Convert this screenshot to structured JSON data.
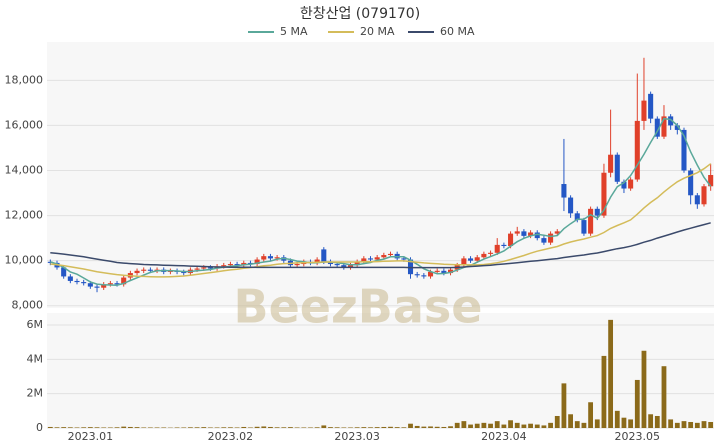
{
  "chart_data": [
    {
      "type": "candlestick",
      "title": "한창산업 (079170)",
      "watermark": "BeezBase",
      "up_color": "#e0402a",
      "down_color": "#2457c5",
      "grid": true,
      "ylim": [
        7900,
        19700
      ],
      "yticks": [
        {
          "value": 8000,
          "label": "8,000"
        },
        {
          "value": 10000,
          "label": "10,000"
        },
        {
          "value": 12000,
          "label": "12,000"
        },
        {
          "value": 14000,
          "label": "14,000"
        },
        {
          "value": 16000,
          "label": "16,000"
        },
        {
          "value": 18000,
          "label": "18,000"
        }
      ],
      "open": [
        9950,
        9900,
        9700,
        9300,
        9100,
        9050,
        9000,
        8850,
        8800,
        8950,
        9000,
        8950,
        9250,
        9450,
        9550,
        9600,
        9550,
        9600,
        9500,
        9550,
        9500,
        9450,
        9600,
        9650,
        9700,
        9650,
        9750,
        9800,
        9850,
        9800,
        9900,
        9850,
        10050,
        10200,
        10100,
        10150,
        10000,
        9800,
        9850,
        9950,
        9900,
        10500,
        9950,
        9850,
        9800,
        9700,
        9800,
        9950,
        10100,
        10050,
        10150,
        10250,
        10300,
        10100,
        10050,
        9400,
        9350,
        9300,
        9500,
        9550,
        9450,
        9600,
        9800,
        10100,
        10000,
        10150,
        10300,
        10350,
        10700,
        10650,
        11200,
        11300,
        11100,
        11250,
        11000,
        10800,
        11200,
        13400,
        12800,
        12100,
        11800,
        11200,
        12300,
        12000,
        13900,
        14700,
        13500,
        13200,
        13600,
        16200,
        17400,
        16300,
        15500,
        16400,
        16000,
        15800,
        14000,
        12900,
        12500,
        13300
      ],
      "high": [
        10050,
        10000,
        9800,
        9400,
        9200,
        9150,
        9100,
        8950,
        9050,
        9100,
        9100,
        9350,
        9550,
        9650,
        9700,
        9700,
        9700,
        9700,
        9650,
        9650,
        9600,
        9700,
        9750,
        9800,
        9800,
        9850,
        9900,
        9950,
        9950,
        10000,
        10000,
        10150,
        10300,
        10300,
        10250,
        10250,
        10100,
        9950,
        10050,
        10050,
        10150,
        10600,
        10050,
        9950,
        9900,
        9900,
        10050,
        10200,
        10200,
        10250,
        10350,
        10400,
        10400,
        10200,
        10150,
        9500,
        9450,
        9600,
        9650,
        9650,
        9700,
        9900,
        10200,
        10200,
        10250,
        10400,
        10450,
        11000,
        10800,
        11300,
        11500,
        11400,
        11350,
        11350,
        11100,
        11300,
        11400,
        15400,
        12900,
        12200,
        11900,
        12400,
        12400,
        14300,
        16700,
        14800,
        13600,
        13700,
        18300,
        19000,
        17500,
        16400,
        16900,
        16500,
        16100,
        15900,
        14100,
        13000,
        13400,
        14300
      ],
      "low": [
        9800,
        9600,
        9200,
        9000,
        8950,
        8900,
        8750,
        8600,
        8700,
        8850,
        8850,
        8850,
        9150,
        9350,
        9450,
        9450,
        9450,
        9400,
        9400,
        9400,
        9350,
        9350,
        9500,
        9550,
        9550,
        9550,
        9650,
        9700,
        9700,
        9700,
        9750,
        9750,
        9950,
        10000,
        10000,
        9900,
        9700,
        9700,
        9750,
        9800,
        9800,
        9850,
        9750,
        9700,
        9600,
        9600,
        9700,
        9850,
        9950,
        9950,
        10050,
        10150,
        10000,
        9950,
        9200,
        9250,
        9200,
        9200,
        9400,
        9350,
        9350,
        9500,
        9700,
        9900,
        9900,
        10050,
        10200,
        10250,
        10550,
        10550,
        11100,
        11000,
        11000,
        10900,
        10700,
        10700,
        11100,
        12200,
        11900,
        11700,
        11100,
        11100,
        11800,
        11900,
        13700,
        13400,
        13000,
        13100,
        13500,
        15800,
        16100,
        15400,
        15400,
        15800,
        15600,
        13900,
        12500,
        12300,
        12400,
        13100
      ],
      "close": [
        9900,
        9700,
        9300,
        9100,
        9050,
        9000,
        8850,
        8800,
        8950,
        9000,
        8950,
        9250,
        9450,
        9550,
        9600,
        9550,
        9600,
        9500,
        9550,
        9500,
        9450,
        9600,
        9650,
        9700,
        9650,
        9750,
        9800,
        9850,
        9800,
        9900,
        9850,
        10050,
        10200,
        10100,
        10150,
        10000,
        9800,
        9850,
        9950,
        9900,
        10050,
        9950,
        9850,
        9800,
        9700,
        9800,
        9950,
        10100,
        10050,
        10150,
        10250,
        10300,
        10100,
        10050,
        9400,
        9350,
        9300,
        9500,
        9550,
        9450,
        9600,
        9800,
        10100,
        10000,
        10150,
        10300,
        10350,
        10700,
        10650,
        11200,
        11300,
        11100,
        11250,
        11000,
        10800,
        11200,
        11300,
        12800,
        12100,
        11800,
        11200,
        12300,
        12000,
        13900,
        14700,
        13500,
        13200,
        13600,
        16200,
        17100,
        16300,
        15500,
        16400,
        16000,
        15800,
        14000,
        12900,
        12500,
        13300,
        13800
      ],
      "series": [
        {
          "name": "5 MA",
          "color": "#5aa89a",
          "values": [
            9950,
            9850,
            9700,
            9500,
            9400,
            9230,
            9060,
            8960,
            8930,
            8920,
            8910,
            8990,
            9120,
            9240,
            9360,
            9480,
            9550,
            9560,
            9560,
            9540,
            9520,
            9520,
            9550,
            9580,
            9610,
            9670,
            9710,
            9750,
            9770,
            9820,
            9840,
            9890,
            9940,
            9980,
            10070,
            10100,
            10050,
            9980,
            9950,
            9900,
            9910,
            9940,
            9940,
            9910,
            9870,
            9820,
            9820,
            9870,
            9920,
            10010,
            10070,
            10170,
            10170,
            10170,
            10020,
            9840,
            9640,
            9520,
            9420,
            9430,
            9480,
            9580,
            9700,
            9790,
            9930,
            10070,
            10180,
            10300,
            10430,
            10640,
            10840,
            10990,
            11100,
            11170,
            11130,
            11070,
            11110,
            11420,
            11640,
            11840,
            11840,
            12040,
            11880,
            12240,
            12820,
            13280,
            13460,
            13780,
            14240,
            14720,
            15240,
            15740,
            16300,
            16260,
            16000,
            15540,
            14820,
            14240,
            13700,
            13300
          ]
        },
        {
          "name": "20 MA",
          "color": "#d4bc5a",
          "values": [
            9850,
            9820,
            9780,
            9730,
            9680,
            9630,
            9570,
            9510,
            9460,
            9420,
            9380,
            9350,
            9330,
            9310,
            9300,
            9290,
            9280,
            9280,
            9290,
            9300,
            9320,
            9350,
            9390,
            9430,
            9470,
            9510,
            9550,
            9590,
            9620,
            9660,
            9690,
            9730,
            9770,
            9800,
            9840,
            9870,
            9880,
            9900,
            9910,
            9920,
            9930,
            9940,
            9940,
            9940,
            9940,
            9940,
            9940,
            9950,
            9950,
            9960,
            9970,
            9980,
            9990,
            9990,
            9960,
            9930,
            9900,
            9880,
            9860,
            9840,
            9830,
            9820,
            9820,
            9810,
            9810,
            9830,
            9860,
            9910,
            9970,
            10050,
            10140,
            10230,
            10330,
            10420,
            10490,
            10560,
            10630,
            10740,
            10830,
            10900,
            10960,
            11040,
            11110,
            11250,
            11430,
            11560,
            11680,
            11810,
            12060,
            12340,
            12580,
            12790,
            13050,
            13280,
            13500,
            13660,
            13780,
            13900,
            14080,
            14300
          ]
        },
        {
          "name": "60 MA",
          "color": "#3b4a6b",
          "values": [
            10350,
            10320,
            10290,
            10250,
            10210,
            10170,
            10120,
            10070,
            10020,
            9970,
            9920,
            9890,
            9870,
            9850,
            9830,
            9820,
            9810,
            9800,
            9790,
            9780,
            9770,
            9760,
            9750,
            9740,
            9730,
            9720,
            9720,
            9710,
            9710,
            9710,
            9710,
            9700,
            9700,
            9700,
            9700,
            9700,
            9700,
            9700,
            9700,
            9700,
            9700,
            9700,
            9700,
            9700,
            9700,
            9700,
            9700,
            9700,
            9700,
            9700,
            9700,
            9700,
            9700,
            9700,
            9690,
            9690,
            9690,
            9690,
            9690,
            9690,
            9690,
            9700,
            9720,
            9740,
            9760,
            9780,
            9800,
            9830,
            9850,
            9880,
            9910,
            9940,
            9970,
            10000,
            10030,
            10060,
            10090,
            10140,
            10180,
            10220,
            10250,
            10300,
            10340,
            10400,
            10470,
            10530,
            10580,
            10640,
            10720,
            10820,
            10900,
            11000,
            11090,
            11180,
            11270,
            11360,
            11440,
            11520,
            11600,
            11680
          ]
        }
      ]
    },
    {
      "type": "bar",
      "color": "#8b6a1a",
      "ylim": [
        0,
        6700000
      ],
      "yticks": [
        0,
        {
          "value": 2000000,
          "label": "2M"
        },
        {
          "value": 4000000,
          "label": "4M"
        },
        {
          "value": 6000000,
          "label": "6M"
        }
      ],
      "categories": [
        null,
        null,
        null,
        null,
        null,
        null,
        "2023.01",
        null,
        null,
        null,
        null,
        null,
        null,
        null,
        null,
        null,
        null,
        null,
        null,
        null,
        null,
        null,
        null,
        null,
        null,
        null,
        null,
        "2023.02",
        null,
        null,
        null,
        null,
        null,
        null,
        null,
        null,
        null,
        null,
        null,
        null,
        null,
        null,
        null,
        null,
        null,
        null,
        "2023.03",
        null,
        null,
        null,
        null,
        null,
        null,
        null,
        null,
        null,
        null,
        null,
        null,
        null,
        null,
        null,
        null,
        null,
        null,
        null,
        null,
        null,
        "2023.04",
        null,
        null,
        null,
        null,
        null,
        null,
        null,
        null,
        null,
        null,
        null,
        null,
        null,
        null,
        null,
        null,
        null,
        null,
        null,
        "2023.05",
        null,
        null,
        null,
        null,
        null,
        null,
        null,
        null,
        null,
        null,
        null
      ],
      "values": [
        60000,
        40000,
        50000,
        40000,
        30000,
        40000,
        50000,
        40000,
        30000,
        30000,
        40000,
        80000,
        60000,
        50000,
        30000,
        30000,
        30000,
        30000,
        20000,
        30000,
        30000,
        40000,
        40000,
        50000,
        30000,
        30000,
        40000,
        40000,
        30000,
        60000,
        30000,
        70000,
        90000,
        60000,
        40000,
        40000,
        50000,
        30000,
        30000,
        30000,
        40000,
        150000,
        50000,
        40000,
        30000,
        30000,
        40000,
        50000,
        40000,
        50000,
        60000,
        70000,
        50000,
        40000,
        250000,
        120000,
        80000,
        90000,
        70000,
        60000,
        100000,
        300000,
        400000,
        200000,
        250000,
        300000,
        250000,
        400000,
        200000,
        450000,
        300000,
        200000,
        250000,
        200000,
        150000,
        300000,
        700000,
        2600000,
        800000,
        400000,
        300000,
        1500000,
        500000,
        4200000,
        6300000,
        1000000,
        600000,
        500000,
        2800000,
        4500000,
        800000,
        700000,
        3600000,
        500000,
        300000,
        400000,
        350000,
        300000,
        400000,
        350000
      ]
    }
  ]
}
